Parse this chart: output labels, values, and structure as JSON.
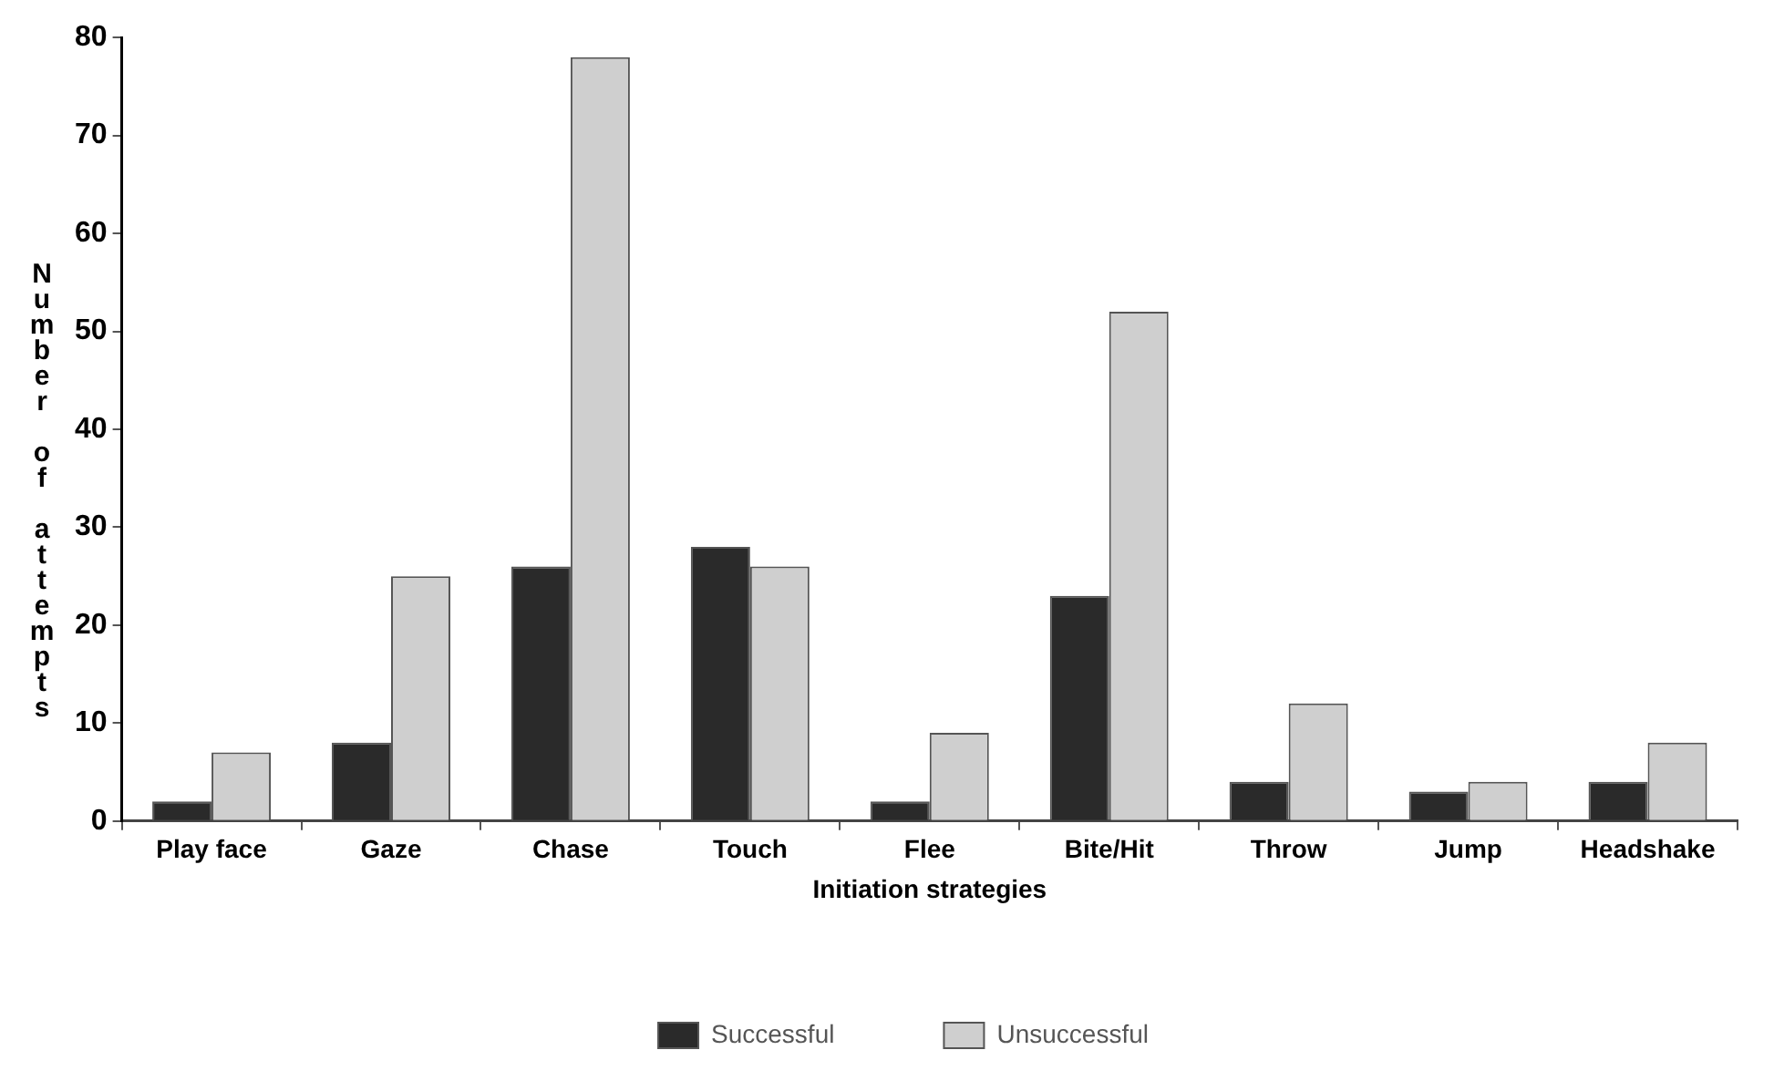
{
  "chart_data": {
    "type": "bar",
    "xlabel": "Initiation strategies",
    "ylabel": "Number of attempts",
    "categories": [
      "Play face",
      "Gaze",
      "Chase",
      "Touch",
      "Flee",
      "Bite/Hit",
      "Throw",
      "Jump",
      "Headshake"
    ],
    "series": [
      {
        "name": "Successful",
        "color": "#2a2a2a",
        "values": [
          2,
          8,
          26,
          28,
          2,
          23,
          4,
          3,
          4
        ]
      },
      {
        "name": "Unsuccessful",
        "color": "#cfcfcf",
        "values": [
          7,
          25,
          78,
          26,
          9,
          52,
          12,
          4,
          8
        ]
      }
    ],
    "ylim": [
      0,
      80
    ],
    "yticks": [
      0,
      10,
      20,
      30,
      40,
      50,
      60,
      70,
      80
    ],
    "grid": false,
    "legend": "bottom"
  }
}
